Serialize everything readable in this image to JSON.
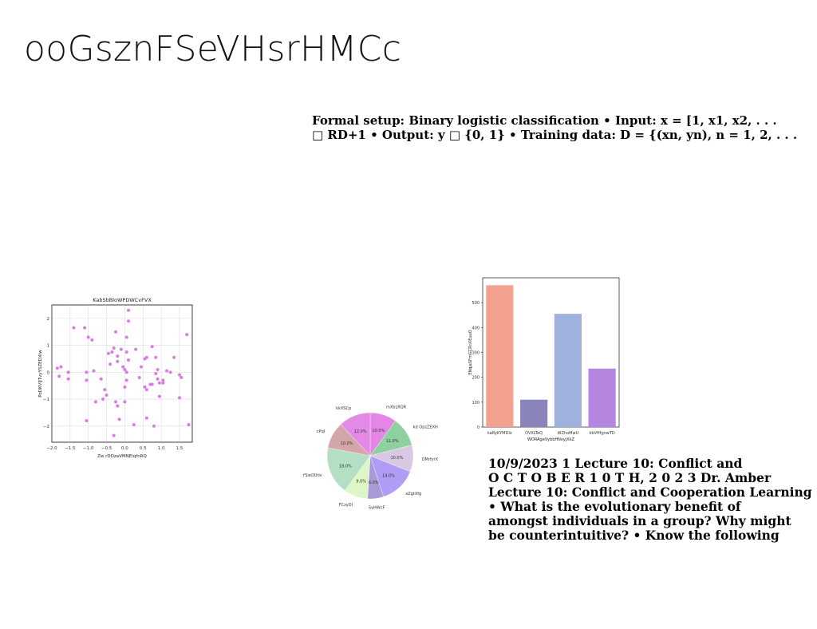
{
  "page": {
    "title": "ooGsznFSeVHsrHMCc",
    "setup_lines": [
      "Formal setup: Binary logistic classification • Input: x = [1, x1, x2, . . .",
      "□ RD+1 • Output: y □ {0, 1} • Training data: D = {(xn, yn), n = 1, 2, . . ."
    ],
    "lecture_lines": [
      "10/9/2023 1 Lecture 10: Conflict and",
      "O C T O B E R 1 0 T H, 2 0 2 3 Dr. Amber",
      "Lecture 10: Conflict and Cooperation Learning",
      "• What is the evolutionary benefit of",
      "amongst individuals in a group? Why might",
      "be counterintuitive? • Know the following"
    ]
  },
  "chart_data": [
    {
      "type": "scatter",
      "title": "KabSbBloWPDWCvFVX",
      "xlabel": "Zw rDDzaVMNElqfnRQ",
      "ylabel": "PoDKVIJTvyYSZEDXIw",
      "xlim": [
        -2.0,
        1.85
      ],
      "ylim": [
        -2.6,
        2.5
      ],
      "xticks": [
        "−2.0",
        "−1.5",
        "−1.0",
        "−0.5",
        "0.0",
        "0.5",
        "1.0",
        "1.5"
      ],
      "xtick_values": [
        -2.0,
        -1.5,
        -1.0,
        -0.5,
        0.0,
        0.5,
        1.0,
        1.5
      ],
      "yticks": [
        "−2",
        "−1",
        "0",
        "1",
        "2"
      ],
      "ytick_values": [
        -2,
        -1,
        0,
        1,
        2
      ],
      "grid": true,
      "color": "#d67ee0",
      "points": [
        [
          -1.85,
          0.15
        ],
        [
          -1.75,
          0.2
        ],
        [
          -1.8,
          -0.15
        ],
        [
          -1.55,
          0.0
        ],
        [
          -1.55,
          -0.25
        ],
        [
          -1.4,
          1.65
        ],
        [
          -1.1,
          1.65
        ],
        [
          -1.0,
          1.3
        ],
        [
          -0.9,
          1.2
        ],
        [
          -1.05,
          0.0
        ],
        [
          -1.05,
          -0.3
        ],
        [
          -0.85,
          0.05
        ],
        [
          -1.05,
          -1.8
        ],
        [
          -0.8,
          -1.1
        ],
        [
          -0.65,
          -0.25
        ],
        [
          -0.55,
          -0.65
        ],
        [
          -0.5,
          -0.85
        ],
        [
          -0.6,
          -1.0
        ],
        [
          -0.35,
          0.75
        ],
        [
          -0.4,
          0.3
        ],
        [
          -0.3,
          0.9
        ],
        [
          -0.25,
          1.5
        ],
        [
          -0.2,
          0.6
        ],
        [
          -0.2,
          0.4
        ],
        [
          -0.25,
          -1.1
        ],
        [
          -0.2,
          -1.25
        ],
        [
          -0.3,
          -2.35
        ],
        [
          -0.15,
          -1.75
        ],
        [
          -0.1,
          0.85
        ],
        [
          0.05,
          0.75
        ],
        [
          0.0,
          0.1
        ],
        [
          0.05,
          0.0
        ],
        [
          -0.05,
          0.2
        ],
        [
          0.05,
          -0.3
        ],
        [
          0.0,
          -0.55
        ],
        [
          0.0,
          -1.1
        ],
        [
          0.1,
          2.3
        ],
        [
          0.1,
          1.9
        ],
        [
          0.05,
          1.3
        ],
        [
          0.1,
          0.45
        ],
        [
          0.3,
          0.85
        ],
        [
          0.25,
          -1.95
        ],
        [
          0.45,
          0.2
        ],
        [
          0.4,
          -0.2
        ],
        [
          0.55,
          -0.55
        ],
        [
          0.55,
          0.5
        ],
        [
          0.6,
          0.55
        ],
        [
          0.6,
          -0.65
        ],
        [
          0.6,
          -1.7
        ],
        [
          0.75,
          0.95
        ],
        [
          0.75,
          -0.45
        ],
        [
          0.8,
          -2.0
        ],
        [
          0.85,
          0.55
        ],
        [
          0.85,
          -0.05
        ],
        [
          0.9,
          -0.25
        ],
        [
          0.9,
          0.1
        ],
        [
          0.95,
          -0.4
        ],
        [
          0.95,
          -0.9
        ],
        [
          1.05,
          -0.3
        ],
        [
          1.05,
          -0.4
        ],
        [
          1.15,
          0.05
        ],
        [
          1.35,
          0.55
        ],
        [
          1.5,
          -0.1
        ],
        [
          1.55,
          -0.2
        ],
        [
          1.5,
          -0.95
        ],
        [
          1.7,
          1.4
        ],
        [
          1.75,
          -1.95
        ],
        [
          1.25,
          0.0
        ],
        [
          0.7,
          -0.45
        ],
        [
          -0.45,
          0.7
        ]
      ]
    },
    {
      "type": "pie",
      "labels": [
        "mXbLRQR",
        "kd OpzZEXH",
        "DMrfyrX",
        "xZgtXfg",
        "SyHWcF",
        "FCzyDI",
        "YSieOUtiv",
        "cPql",
        "kkXSCp"
      ],
      "values": [
        10.0,
        11.0,
        10.0,
        14.0,
        6.0,
        9.0,
        18.0,
        10.0,
        12.0
      ],
      "pct_labels": [
        "10.0%",
        "11.0%",
        "10.0%",
        "14.0%",
        "6.0%",
        "9.0%",
        "18.0%",
        "10.0%",
        "12.0%"
      ],
      "colors": [
        "#e585e8",
        "#8ed0a0",
        "#d8c8e4",
        "#b09cf5",
        "#a99ad6",
        "#dcf6c6",
        "#b5dfc5",
        "#d4a6a9",
        "#e38ae6"
      ]
    },
    {
      "type": "bar",
      "xlabel": "WORAgeVybbHNoyjXkZ",
      "ylabel": "ENqjaSFmGCRnXEuuO",
      "categories": [
        "kaRyKYMDIx",
        "OVXLTeQ",
        "WZhoMwU",
        "kbVHfgnwTD"
      ],
      "values": [
        570,
        110,
        455,
        235
      ],
      "colors": [
        "#f4a290",
        "#8985bb",
        "#9fb1dd",
        "#b586e0"
      ],
      "ylim": [
        0,
        600
      ],
      "yticks": [
        "0",
        "100",
        "200",
        "300",
        "400",
        "500"
      ],
      "ytick_values": [
        0,
        100,
        200,
        300,
        400,
        500
      ]
    }
  ]
}
